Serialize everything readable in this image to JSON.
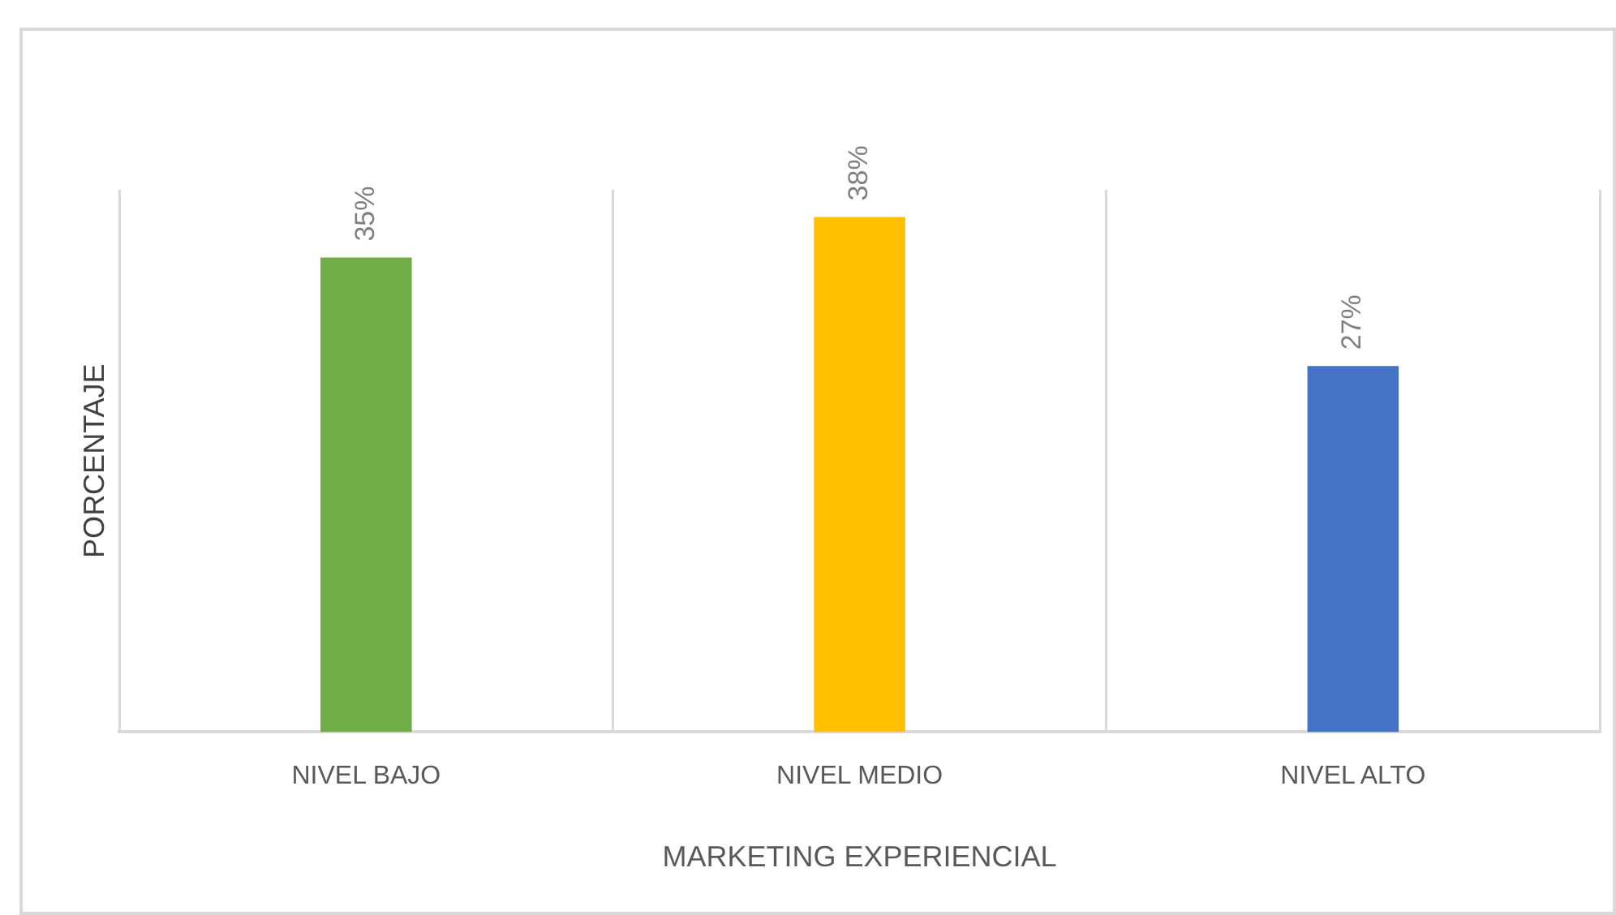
{
  "chart_data": {
    "type": "bar",
    "xlabel": "MARKETING EXPERIENCIAL",
    "ylabel": "PORCENTAJE",
    "categories": [
      "NIVEL BAJO",
      "NIVEL MEDIO",
      "NIVEL ALTO"
    ],
    "values": [
      35,
      38,
      27
    ],
    "colors": [
      "#70ad47",
      "#ffc000",
      "#4472c4"
    ],
    "value_labels": [
      "35%",
      "38%",
      "27%"
    ],
    "ylim": [
      0,
      40
    ],
    "grid": "x",
    "legend": false,
    "tick_labels": "x"
  }
}
